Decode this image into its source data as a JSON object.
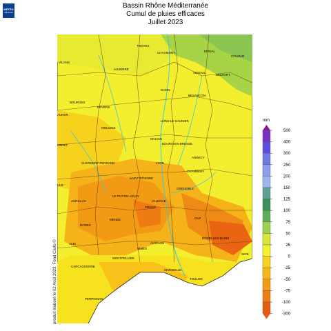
{
  "header": {
    "title": "Bassin Rhône Méditerranée",
    "subtitle": "Cumul de pluies efficaces",
    "period": "Juillet 2023"
  },
  "logo": {
    "line1": "MÉTÉO",
    "line2": "FRANCE"
  },
  "credit": "produit élaboré le 02 Août 2023",
  "credit2": "Fond Carto ©",
  "legend": {
    "unit": "mm",
    "classes": [
      {
        "label": "500",
        "color": "#8b1a8b"
      },
      {
        "label": "400",
        "color": "#7a2fc4"
      },
      {
        "label": "300",
        "color": "#5a4de0"
      },
      {
        "label": "250",
        "color": "#6f7ae6"
      },
      {
        "label": "200",
        "color": "#8a9cf0"
      },
      {
        "label": "150",
        "color": "#9bb6ea"
      },
      {
        "label": "125",
        "color": "#5f9e96"
      },
      {
        "label": "100",
        "color": "#3e8f5a"
      },
      {
        "label": "75",
        "color": "#5fae5c"
      },
      {
        "label": "50",
        "color": "#9ccf4e"
      },
      {
        "label": "25",
        "color": "#d6e63a"
      },
      {
        "label": "0",
        "color": "#f5f22c"
      },
      {
        "label": "-25",
        "color": "#f7d21c"
      },
      {
        "label": "-50",
        "color": "#f7b817"
      },
      {
        "label": "-75",
        "color": "#f39a15"
      },
      {
        "label": "-100",
        "color": "#ef7b14"
      },
      {
        "label": "-300",
        "color": "#e85a10"
      }
    ]
  },
  "cities": [
    "TROYES",
    "CHAUMONT",
    "EPINAL",
    "COLMAR",
    "VILANS",
    "AUXERRE",
    "VESOUL",
    "BELFORT",
    "DIJON",
    "BESANCON",
    "BOURGES",
    "NEVERS",
    "MOULINS",
    "LONS-LE-SAUNIER",
    "AURON",
    "MACON",
    "BOURG-EN-BRESSE",
    "UBRET",
    "LYON",
    "ANNECY",
    "CLERMONT-FERRAND",
    "CHAMBERY",
    "SAINT-ETIENNE",
    "GRENOBLE",
    "ULE",
    "AURILLAC",
    "LE PUY-EN-VELAY",
    "VALENCE",
    "PRIVAS",
    "GAP",
    "RODEZ",
    "MENDE",
    "DIGNE-LES-BAINS",
    "ALBI",
    "AVIGNON",
    "NIMES",
    "MONTPELLIER",
    "NICE",
    "CARCASSONNE",
    "MARSEILLE",
    "TOULON",
    "PERPIGNAN"
  ]
}
